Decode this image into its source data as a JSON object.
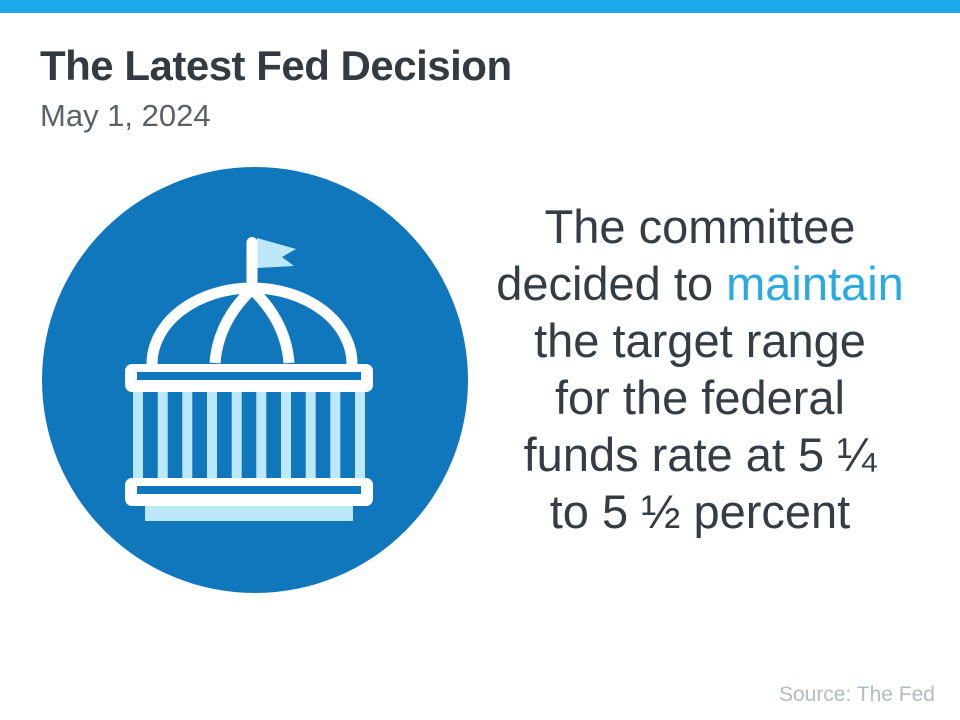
{
  "slide": {
    "title": "The Latest Fed Decision",
    "date": "May 1, 2024",
    "source": "Source: The Fed"
  },
  "message": {
    "lines": [
      [
        {
          "text": "The committee"
        }
      ],
      [
        {
          "text": "decided to "
        },
        {
          "text": "maintain",
          "highlight": true
        }
      ],
      [
        {
          "text": "the target range"
        }
      ],
      [
        {
          "text": "for the federal"
        }
      ],
      [
        {
          "text": "funds rate at 5 ¼"
        }
      ],
      [
        {
          "text": "to 5 ½ percent"
        }
      ]
    ]
  },
  "icon": {
    "name": "capitol-building-icon",
    "column_count": 10
  },
  "colors": {
    "top_bar": "#1CA9EC",
    "accent": "#29ABE2",
    "circle_blue": "#1177BD",
    "pale_cyan": "#BCE8FA",
    "title_text": "#333B42",
    "date_text": "#5A6268",
    "body_text": "#343C46",
    "source_text": "#B3BCC4"
  }
}
